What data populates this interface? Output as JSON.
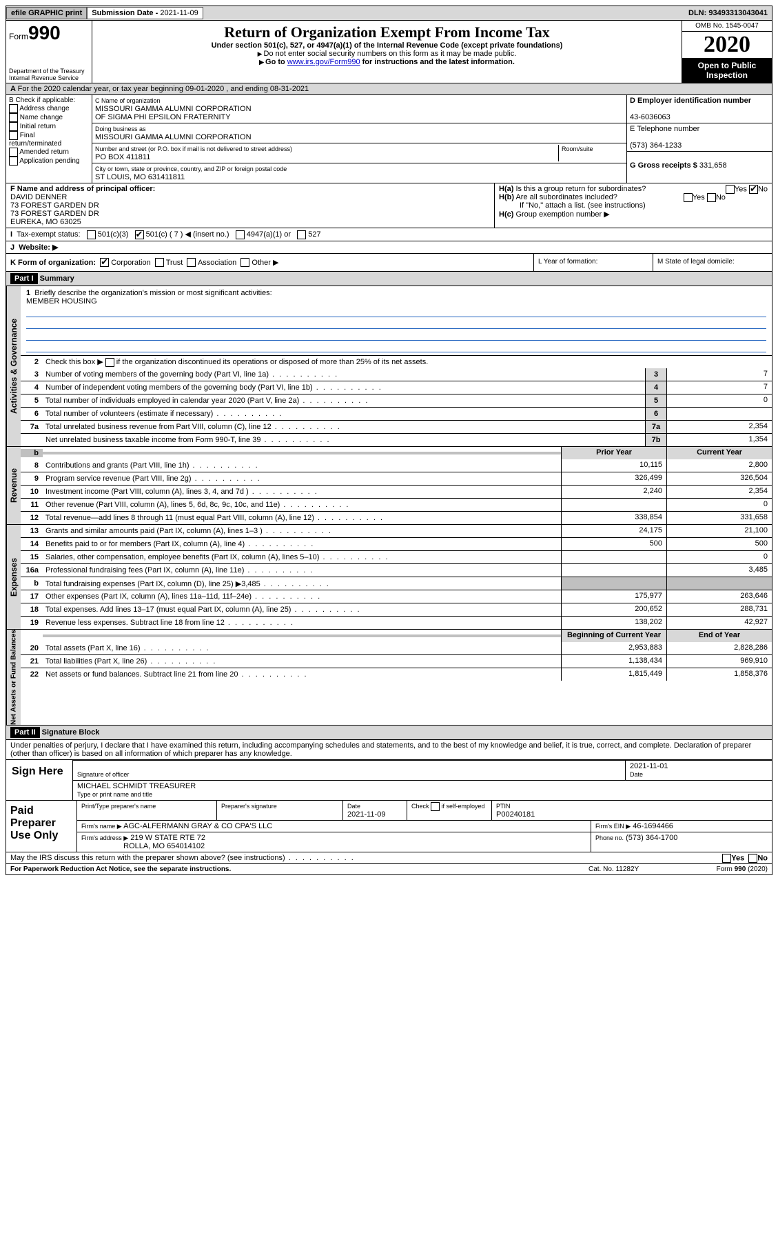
{
  "topbar": {
    "efile": "efile GRAPHIC print",
    "subdate_label": "Submission Date - ",
    "subdate": "2021-11-09",
    "dln_label": "DLN: ",
    "dln": "93493313043041"
  },
  "header": {
    "form_label": "Form",
    "form_num": "990",
    "dept1": "Department of the Treasury",
    "dept2": "Internal Revenue Service",
    "title": "Return of Organization Exempt From Income Tax",
    "sub1": "Under section 501(c), 527, or 4947(a)(1) of the Internal Revenue Code (except private foundations)",
    "sub2": "Do not enter social security numbers on this form as it may be made public.",
    "sub3_pre": "Go to ",
    "sub3_link": "www.irs.gov/Form990",
    "sub3_post": " for instructions and the latest information.",
    "omb": "OMB No. 1545-0047",
    "year": "2020",
    "open1": "Open to Public",
    "open2": "Inspection"
  },
  "rowA": {
    "text": "For the 2020 calendar year, or tax year beginning 09-01-2020    , and ending 08-31-2021"
  },
  "boxB": {
    "hdr": "B Check if applicable:",
    "items": [
      "Address change",
      "Name change",
      "Initial return",
      "Final return/terminated",
      "Amended return",
      "Application pending"
    ]
  },
  "boxC": {
    "name_lbl": "C Name of organization",
    "name1": "MISSOURI GAMMA ALUMNI CORPORATION",
    "name2": "OF SIGMA PHI EPSILON FRATERNITY",
    "dba_lbl": "Doing business as",
    "dba": "MISSOURI GAMMA ALUMNI CORPORATION",
    "addr_lbl": "Number and street (or P.O. box if mail is not delivered to street address)",
    "room_lbl": "Room/suite",
    "addr": "PO BOX 411811",
    "city_lbl": "City or town, state or province, country, and ZIP or foreign postal code",
    "city": "ST LOUIS, MO   631411811"
  },
  "boxD": {
    "ein_lbl": "D Employer identification number",
    "ein": "43-6036063",
    "tel_lbl": "E Telephone number",
    "tel": "(573) 364-1233",
    "gross_lbl": "G Gross receipts $ ",
    "gross": "331,658"
  },
  "boxF": {
    "lbl": "F Name and address of principal officer:",
    "l1": "DAVID DENNER",
    "l2": "73 FOREST GARDEN DR",
    "l3": "73 FOREST GARDEN DR",
    "l4": "EUREKA, MO   63025"
  },
  "boxH": {
    "ha": "Is this a group return for subordinates?",
    "hb": "Are all subordinates included?",
    "hb2": "If \"No,\" attach a list. (see instructions)",
    "hc": "Group exemption number ▶",
    "yes": "Yes",
    "no": "No"
  },
  "rowI": {
    "lbl": "Tax-exempt status:",
    "o1": "501(c)(3)",
    "o2": "501(c) ( 7 ) ◀ (insert no.)",
    "o3": "4947(a)(1) or",
    "o4": "527"
  },
  "rowJ": {
    "lbl": "Website: ▶"
  },
  "rowK": {
    "lbl": "K Form of organization:",
    "o1": "Corporation",
    "o2": "Trust",
    "o3": "Association",
    "o4": "Other ▶",
    "L": "L Year of formation:",
    "M": "M State of legal domicile:"
  },
  "part1": {
    "hdr": "Part I",
    "title": "Summary",
    "tab_gov": "Activities & Governance",
    "tab_rev": "Revenue",
    "tab_exp": "Expenses",
    "tab_net": "Net Assets or Fund Balances",
    "l1": "Briefly describe the organization's mission or most significant activities:",
    "mission": "MEMBER HOUSING",
    "l2": "Check this box ▶        if the organization discontinued its operations or disposed of more than 25% of its net assets.",
    "py": "Prior Year",
    "cy": "Current Year",
    "bcy": "Beginning of Current Year",
    "eoy": "End of Year",
    "rows_gov": [
      {
        "n": "3",
        "t": "Number of voting members of the governing body (Part VI, line 1a)",
        "b": "3",
        "v": "7"
      },
      {
        "n": "4",
        "t": "Number of independent voting members of the governing body (Part VI, line 1b)",
        "b": "4",
        "v": "7"
      },
      {
        "n": "5",
        "t": "Total number of individuals employed in calendar year 2020 (Part V, line 2a)",
        "b": "5",
        "v": "0"
      },
      {
        "n": "6",
        "t": "Total number of volunteers (estimate if necessary)",
        "b": "6",
        "v": ""
      },
      {
        "n": "7a",
        "t": "Total unrelated business revenue from Part VIII, column (C), line 12",
        "b": "7a",
        "v": "2,354"
      },
      {
        "n": "",
        "t": "Net unrelated business taxable income from Form 990-T, line 39",
        "b": "7b",
        "v": "1,354"
      }
    ],
    "rows_rev": [
      {
        "n": "8",
        "t": "Contributions and grants (Part VIII, line 1h)",
        "py": "10,115",
        "cy": "2,800"
      },
      {
        "n": "9",
        "t": "Program service revenue (Part VIII, line 2g)",
        "py": "326,499",
        "cy": "326,504"
      },
      {
        "n": "10",
        "t": "Investment income (Part VIII, column (A), lines 3, 4, and 7d )",
        "py": "2,240",
        "cy": "2,354"
      },
      {
        "n": "11",
        "t": "Other revenue (Part VIII, column (A), lines 5, 6d, 8c, 9c, 10c, and 11e)",
        "py": "",
        "cy": "0"
      },
      {
        "n": "12",
        "t": "Total revenue—add lines 8 through 11 (must equal Part VIII, column (A), line 12)",
        "py": "338,854",
        "cy": "331,658"
      }
    ],
    "rows_exp": [
      {
        "n": "13",
        "t": "Grants and similar amounts paid (Part IX, column (A), lines 1–3 )",
        "py": "24,175",
        "cy": "21,100"
      },
      {
        "n": "14",
        "t": "Benefits paid to or for members (Part IX, column (A), line 4)",
        "py": "500",
        "cy": "500"
      },
      {
        "n": "15",
        "t": "Salaries, other compensation, employee benefits (Part IX, column (A), lines 5–10)",
        "py": "",
        "cy": "0"
      },
      {
        "n": "16a",
        "t": "Professional fundraising fees (Part IX, column (A), line 11e)",
        "py": "",
        "cy": "3,485"
      },
      {
        "n": "b",
        "t": "Total fundraising expenses (Part IX, column (D), line 25) ▶3,485",
        "py": "SHADE",
        "cy": "SHADE"
      },
      {
        "n": "17",
        "t": "Other expenses (Part IX, column (A), lines 11a–11d, 11f–24e)",
        "py": "175,977",
        "cy": "263,646"
      },
      {
        "n": "18",
        "t": "Total expenses. Add lines 13–17 (must equal Part IX, column (A), line 25)",
        "py": "200,652",
        "cy": "288,731"
      },
      {
        "n": "19",
        "t": "Revenue less expenses. Subtract line 18 from line 12",
        "py": "138,202",
        "cy": "42,927"
      }
    ],
    "rows_net": [
      {
        "n": "20",
        "t": "Total assets (Part X, line 16)",
        "py": "2,953,883",
        "cy": "2,828,286"
      },
      {
        "n": "21",
        "t": "Total liabilities (Part X, line 26)",
        "py": "1,138,434",
        "cy": "969,910"
      },
      {
        "n": "22",
        "t": "Net assets or fund balances. Subtract line 21 from line 20",
        "py": "1,815,449",
        "cy": "1,858,376"
      }
    ]
  },
  "part2": {
    "hdr": "Part II",
    "title": "Signature Block",
    "decl": "Under penalties of perjury, I declare that I have examined this return, including accompanying schedules and statements, and to the best of my knowledge and belief, it is true, correct, and complete. Declaration of preparer (other than officer) is based on all information of which preparer has any knowledge.",
    "sign": "Sign Here",
    "sig_of": "Signature of officer",
    "date": "Date",
    "sig_date": "2021-11-01",
    "name": "MICHAEL SCHMIDT TREASURER",
    "name_lbl": "Type or print name and title",
    "paid": "Paid Preparer Use Only",
    "pp_name": "Print/Type preparer's name",
    "pp_sig": "Preparer's signature",
    "pp_date": "2021-11-09",
    "pp_check": "Check         if self-employed",
    "ptin_lbl": "PTIN",
    "ptin": "P00240181",
    "firm_name_lbl": "Firm's name     ▶",
    "firm_name": "AGC-ALFERMANN GRAY & CO CPA'S LLC",
    "firm_ein_lbl": "Firm's EIN ▶",
    "firm_ein": "46-1694466",
    "firm_addr_lbl": "Firm's address ▶",
    "firm_addr1": "219 W STATE RTE 72",
    "firm_addr2": "ROLLA, MO   654014102",
    "phone_lbl": "Phone no.",
    "phone": "(573) 364-1700",
    "discuss": "May the IRS discuss this return with the preparer shown above? (see instructions)"
  },
  "footer": {
    "pra": "For Paperwork Reduction Act Notice, see the separate instructions.",
    "cat": "Cat. No. 11282Y",
    "form": "Form 990 (2020)"
  }
}
